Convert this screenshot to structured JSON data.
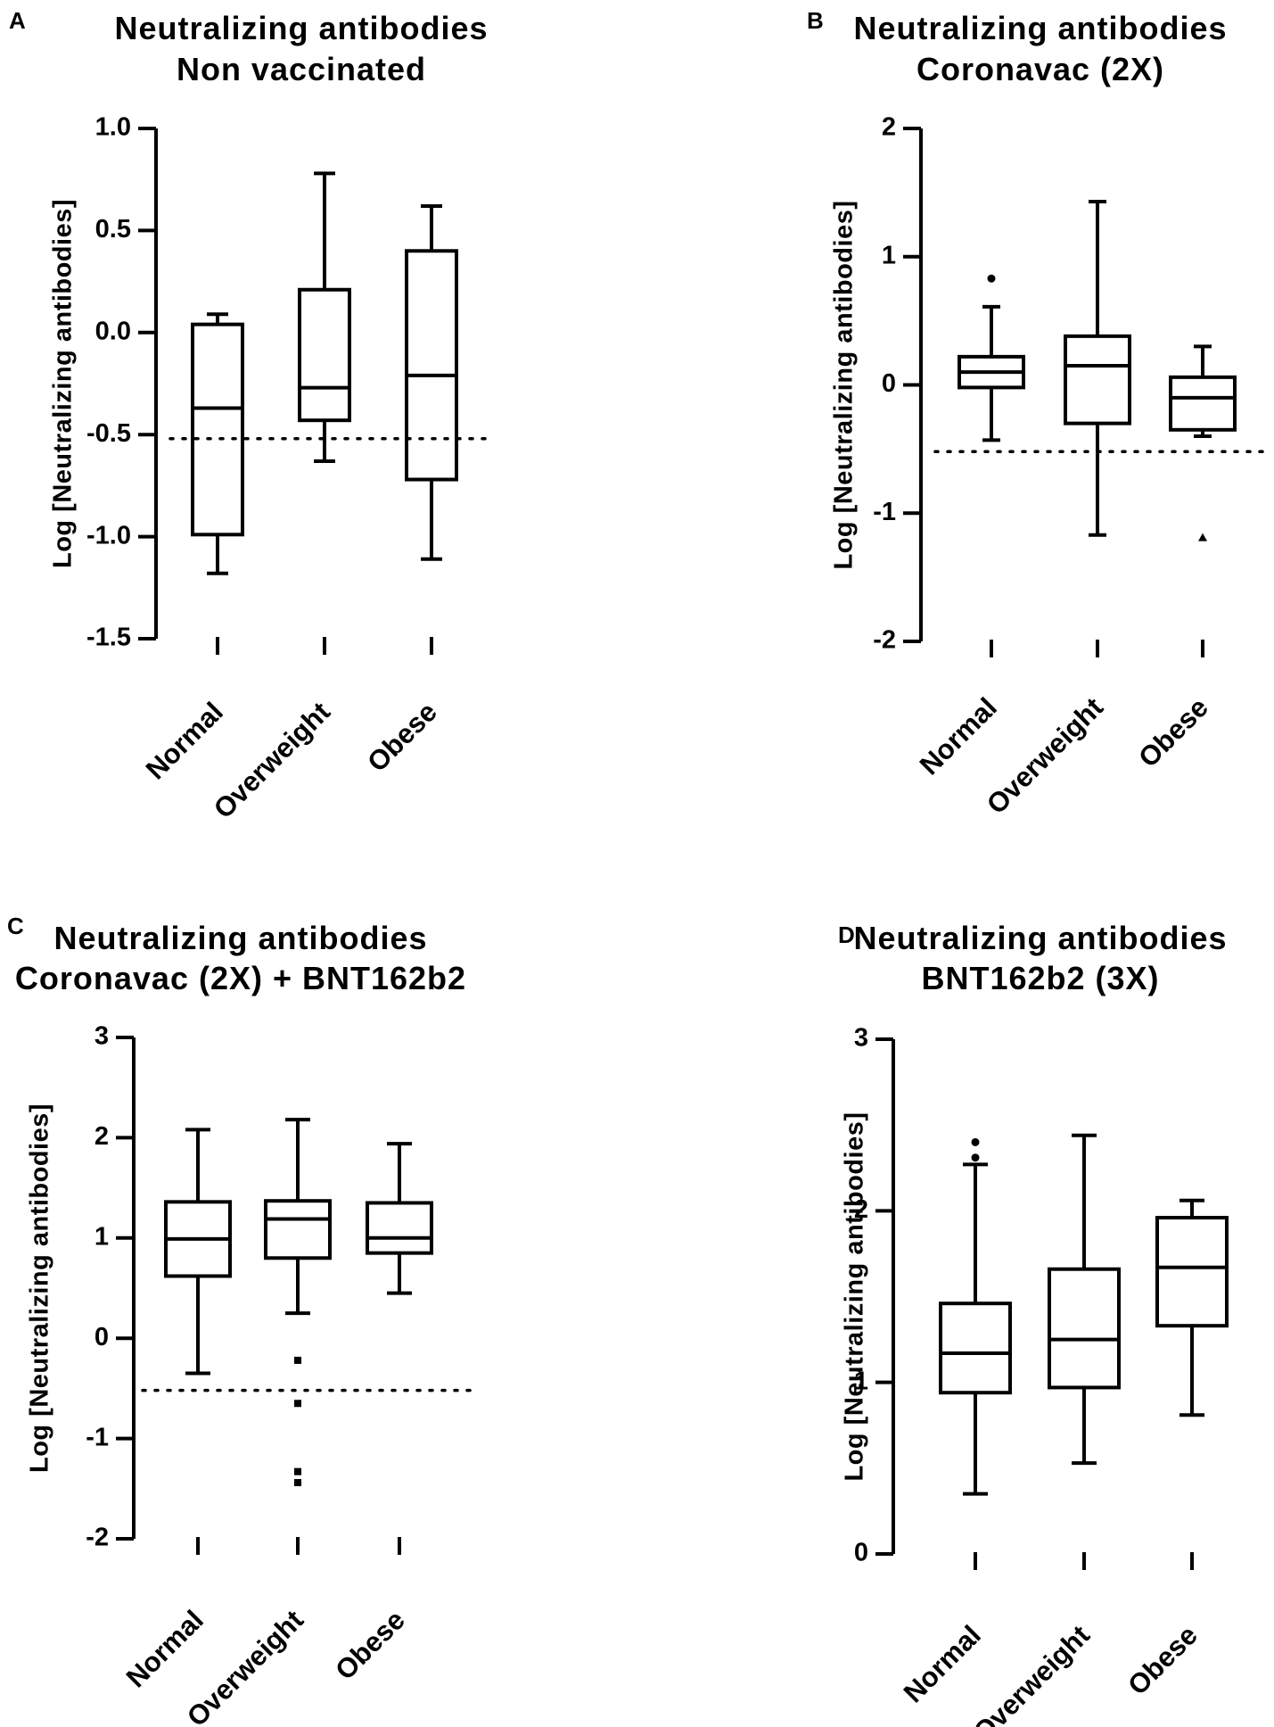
{
  "chart_data": [
    {
      "type": "box",
      "panel": "A",
      "title": [
        "Neutralizing antibodies",
        "Non vaccinated"
      ],
      "ylabel": "Log [Neutralizing antibodies]",
      "xlabel": "",
      "categories": [
        "Normal",
        "Overweight",
        "Obese"
      ],
      "ylim": [
        -1.5,
        1.0
      ],
      "yticks": [
        1.0,
        0.5,
        0.0,
        -0.5,
        -1.0,
        -1.5
      ],
      "ytick_labels": [
        "1.0",
        "0.5",
        "0.0",
        "-0.5",
        "-1.0",
        "-1.5"
      ],
      "reference_line": -0.52,
      "series": [
        {
          "name": "Normal",
          "whisker_low": -1.18,
          "q1": -0.99,
          "median": -0.37,
          "q3": 0.04,
          "whisker_high": 0.09,
          "outliers": []
        },
        {
          "name": "Overweight",
          "whisker_low": -0.63,
          "q1": -0.43,
          "median": -0.27,
          "q3": 0.21,
          "whisker_high": 0.78,
          "outliers": []
        },
        {
          "name": "Obese",
          "whisker_low": -1.11,
          "q1": -0.72,
          "median": -0.21,
          "q3": 0.4,
          "whisker_high": 0.62,
          "outliers": []
        }
      ]
    },
    {
      "type": "box",
      "panel": "B",
      "title": [
        "Neutralizing antibodies",
        "Coronavac (2X)"
      ],
      "ylabel": "Log [Neutralizing antibodies]",
      "xlabel": "",
      "categories": [
        "Normal",
        "Overweight",
        "Obese"
      ],
      "ylim": [
        -2,
        2
      ],
      "yticks": [
        2,
        1,
        0,
        -1,
        -2
      ],
      "ytick_labels": [
        "2",
        "1",
        "0",
        "-1",
        "-2"
      ],
      "reference_line": -0.52,
      "series": [
        {
          "name": "Normal",
          "whisker_low": -0.43,
          "q1": -0.02,
          "median": 0.1,
          "q3": 0.22,
          "whisker_high": 0.61,
          "outliers": [
            0.83
          ]
        },
        {
          "name": "Overweight",
          "whisker_low": -1.17,
          "q1": -0.3,
          "median": 0.15,
          "q3": 0.38,
          "whisker_high": 1.43,
          "outliers": []
        },
        {
          "name": "Obese",
          "whisker_low": -0.4,
          "q1": -0.35,
          "median": -0.1,
          "q3": 0.06,
          "whisker_high": 0.3,
          "outliers": [
            -1.19
          ]
        }
      ]
    },
    {
      "type": "box",
      "panel": "C",
      "title": [
        "Neutralizing antibodies",
        "Coronavac (2X) + BNT162b2"
      ],
      "ylabel": "Log [Neutralizing antibodies]",
      "xlabel": "",
      "categories": [
        "Normal",
        "Overweight",
        "Obese"
      ],
      "ylim": [
        -2,
        3
      ],
      "yticks": [
        3,
        2,
        1,
        0,
        -1,
        -2
      ],
      "ytick_labels": [
        "3",
        "2",
        "1",
        "0",
        "-1",
        "-2"
      ],
      "reference_line": -0.52,
      "series": [
        {
          "name": "Normal",
          "whisker_low": -0.35,
          "q1": 0.62,
          "median": 0.99,
          "q3": 1.36,
          "whisker_high": 2.08,
          "outliers": []
        },
        {
          "name": "Overweight",
          "whisker_low": 0.25,
          "q1": 0.8,
          "median": 1.19,
          "q3": 1.37,
          "whisker_high": 2.18,
          "outliers": [
            -0.22,
            -0.65,
            -1.33,
            -1.44
          ]
        },
        {
          "name": "Obese",
          "whisker_low": 0.45,
          "q1": 0.85,
          "median": 1.0,
          "q3": 1.35,
          "whisker_high": 1.94,
          "outliers": []
        }
      ]
    },
    {
      "type": "box",
      "panel": "D",
      "title": [
        "Neutralizing antibodies",
        "BNT162b2 (3X)"
      ],
      "ylabel": "Log [Neutralizing antibodies]",
      "xlabel": "",
      "categories": [
        "Normal",
        "Overweight",
        "Obese"
      ],
      "ylim": [
        0,
        3
      ],
      "yticks": [
        3,
        2,
        1,
        0
      ],
      "ytick_labels": [
        "3",
        "2",
        "1",
        "0"
      ],
      "reference_line": null,
      "series": [
        {
          "name": "Normal",
          "whisker_low": 0.35,
          "q1": 0.94,
          "median": 1.17,
          "q3": 1.46,
          "whisker_high": 2.27,
          "outliers": [
            2.4,
            2.31
          ]
        },
        {
          "name": "Overweight",
          "whisker_low": 0.53,
          "q1": 0.97,
          "median": 1.25,
          "q3": 1.66,
          "whisker_high": 2.44,
          "outliers": []
        },
        {
          "name": "Obese",
          "whisker_low": 0.81,
          "q1": 1.33,
          "median": 1.67,
          "q3": 1.96,
          "whisker_high": 2.06,
          "outliers": []
        }
      ]
    }
  ]
}
